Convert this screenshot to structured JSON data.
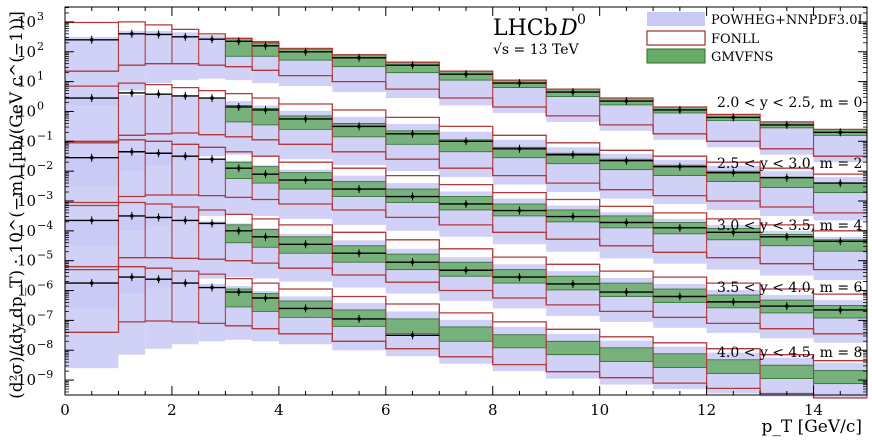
{
  "chart_data": {
    "type": "line",
    "title": "LHCb",
    "title_particle": "D",
    "title_particle_sup": "0",
    "subtitle": "√s = 13 TeV",
    "xlabel": "p_T [GeV/c]",
    "ylabel": "(d²σ)/(dy dp_T) · 10^(−m) [µb/(GeV c^(−1))]",
    "xlim": [
      0,
      15
    ],
    "ylim_log10": [
      -9.5,
      3.5
    ],
    "y_scale": "log",
    "xticks": [
      "0",
      "2",
      "4",
      "6",
      "8",
      "10",
      "12",
      "14"
    ],
    "yticks": [
      "10^3",
      "10^2",
      "10^1",
      "10^0",
      "10^-1",
      "10^-2",
      "10^-3",
      "10^-4",
      "10^-5",
      "10^-6",
      "10^-7",
      "10^-8",
      "10^-9"
    ],
    "legend_position": "top-right",
    "legend": [
      {
        "label": "POWHEG+NNPDF3.0L",
        "color": "#c9c9f6"
      },
      {
        "label": "FONLL",
        "color": "#b03a3a"
      },
      {
        "label": "GMVFNS",
        "color": "#67ad67"
      }
    ],
    "bins": [
      0,
      1,
      1.5,
      2,
      2.5,
      3,
      3.5,
      4,
      5,
      6,
      7,
      8,
      9,
      10,
      11,
      12,
      13,
      14,
      15
    ],
    "series": [
      {
        "name": "2.0 < y < 2.5, m = 0",
        "data_log10": [
          2.4,
          2.6,
          2.58,
          2.5,
          2.42,
          2.35,
          2.2,
          2.0,
          1.8,
          1.55,
          1.25,
          0.95,
          0.65,
          0.35,
          0.05,
          -0.2,
          -0.45,
          -0.7
        ],
        "fonll_high_log10": [
          2.98,
          3.0,
          2.9,
          2.75,
          2.6,
          2.45,
          2.3,
          2.1,
          1.9,
          1.65,
          1.35,
          1.05,
          0.75,
          0.45,
          0.15,
          -0.1,
          -0.35,
          -0.6
        ],
        "fonll_low_log10": [
          1.35,
          1.55,
          1.6,
          1.6,
          1.55,
          1.5,
          1.38,
          1.2,
          1.0,
          0.75,
          0.45,
          0.15,
          -0.15,
          -0.45,
          -0.75,
          -1.0,
          -1.25,
          -1.5
        ],
        "powheg_high_log10": [
          2.5,
          2.7,
          2.7,
          2.65,
          2.55,
          2.45,
          2.3,
          2.1,
          1.9,
          1.65,
          1.35,
          1.05,
          0.75,
          0.45,
          0.15,
          -0.1,
          -0.35,
          -0.6
        ],
        "powheg_low_log10": [
          0.2,
          0.7,
          0.95,
          1.05,
          1.1,
          1.05,
          0.95,
          0.85,
          0.65,
          0.45,
          0.2,
          -0.05,
          -0.35,
          -0.65,
          -0.95,
          -1.2,
          -1.45,
          -1.7
        ],
        "gmvfns_high_log10": [
          null,
          null,
          null,
          null,
          null,
          2.45,
          2.35,
          2.12,
          1.9,
          1.65,
          1.35,
          1.05,
          0.75,
          0.45,
          0.15,
          -0.1,
          -0.35,
          -0.6
        ],
        "gmvfns_low_log10": [
          null,
          null,
          null,
          null,
          null,
          1.85,
          1.85,
          1.72,
          1.5,
          1.3,
          1.05,
          0.8,
          0.5,
          0.22,
          -0.05,
          -0.3,
          -0.55,
          -0.8
        ]
      },
      {
        "name": "2.5 < y < 3.0, m = 2",
        "data_log10": [
          0.45,
          0.62,
          0.58,
          0.52,
          0.45,
          0.15,
          0.05,
          -0.25,
          -0.5,
          -0.75,
          -1.0,
          -1.25,
          -1.45,
          -1.65,
          -1.85,
          -2.05,
          -2.22,
          -2.4
        ],
        "fonll_high_log10": [
          0.85,
          0.95,
          0.9,
          0.8,
          0.7,
          0.6,
          0.45,
          0.25,
          0.05,
          -0.2,
          -0.5,
          -0.8,
          -1.05,
          -1.3,
          -1.5,
          -1.7,
          -1.9,
          -2.1
        ],
        "fonll_low_log10": [
          -1.0,
          -0.8,
          -0.75,
          -0.72,
          -0.78,
          -0.85,
          -0.95,
          -1.1,
          -1.35,
          -1.6,
          -1.9,
          -2.15,
          -2.4,
          -2.62,
          -2.82,
          -3.0,
          -3.2,
          -3.4
        ],
        "powheg_high_log10": [
          0.4,
          0.55,
          0.55,
          0.5,
          0.42,
          0.35,
          0.2,
          0.02,
          -0.18,
          -0.42,
          -0.68,
          -0.95,
          -1.2,
          -1.42,
          -1.62,
          -1.82,
          -2.0,
          -2.2
        ],
        "powheg_low_log10": [
          -2.5,
          -2.0,
          -1.8,
          -1.6,
          -1.5,
          -1.45,
          -1.5,
          -1.6,
          -1.8,
          -2.0,
          -2.2,
          -2.45,
          -2.7,
          -2.92,
          -3.1,
          -3.3,
          -3.5,
          -3.65
        ],
        "gmvfns_high_log10": [
          null,
          null,
          null,
          null,
          null,
          0.2,
          0.1,
          -0.15,
          -0.4,
          -0.65,
          -0.95,
          -1.2,
          -1.4,
          -1.6,
          -1.8,
          -2.0,
          -2.2,
          -2.4
        ],
        "gmvfns_low_log10": [
          null,
          null,
          null,
          null,
          null,
          -0.35,
          -0.45,
          -0.6,
          -0.85,
          -1.1,
          -1.35,
          -1.55,
          -1.75,
          -1.95,
          -2.15,
          -2.35,
          -2.55,
          -2.72
        ]
      },
      {
        "name": "3.0 < y < 3.5, m = 4",
        "data_log10": [
          -1.55,
          -1.35,
          -1.4,
          -1.5,
          -1.6,
          -1.9,
          -2.1,
          -2.3,
          -2.6,
          -2.85,
          -3.1,
          -3.32,
          -3.52,
          -3.72,
          -3.9,
          -4.05,
          -4.2,
          -4.35
        ],
        "fonll_high_log10": [
          -1.05,
          -0.95,
          -1.0,
          -1.1,
          -1.2,
          -1.35,
          -1.5,
          -1.7,
          -1.9,
          -2.15,
          -2.45,
          -2.72,
          -2.95,
          -3.18,
          -3.4,
          -3.6,
          -3.8,
          -4.0
        ],
        "fonll_low_log10": [
          -3.05,
          -2.85,
          -2.8,
          -2.8,
          -2.82,
          -2.88,
          -2.95,
          -3.1,
          -3.3,
          -3.55,
          -3.8,
          -4.05,
          -4.28,
          -4.5,
          -4.72,
          -4.9,
          -5.1,
          -5.3
        ],
        "powheg_high_log10": [
          -1.6,
          -1.45,
          -1.45,
          -1.5,
          -1.58,
          -1.65,
          -1.8,
          -1.95,
          -2.15,
          -2.4,
          -2.68,
          -2.92,
          -3.15,
          -3.38,
          -3.6,
          -3.8,
          -4.0,
          -4.2
        ],
        "powheg_low_log10": [
          -4.5,
          -4.0,
          -3.8,
          -3.6,
          -3.5,
          -3.45,
          -3.5,
          -3.6,
          -3.8,
          -4.0,
          -4.2,
          -4.45,
          -4.7,
          -4.92,
          -5.1,
          -5.3,
          -5.5,
          -5.65
        ],
        "gmvfns_high_log10": [
          null,
          null,
          null,
          null,
          null,
          -1.7,
          -1.85,
          -2.05,
          -2.35,
          -2.6,
          -2.85,
          -3.1,
          -3.3,
          -3.5,
          -3.72,
          -3.92,
          -4.12,
          -4.3
        ],
        "gmvfns_low_log10": [
          null,
          null,
          null,
          null,
          null,
          -2.25,
          -2.4,
          -2.6,
          -2.85,
          -3.05,
          -3.3,
          -3.5,
          -3.7,
          -3.9,
          -4.1,
          -4.3,
          -4.5,
          -4.68
        ]
      },
      {
        "name": "3.5 < y < 4.0, m = 6",
        "data_log10": [
          -3.65,
          -3.5,
          -3.55,
          -3.65,
          -3.75,
          -4.0,
          -4.2,
          -4.45,
          -4.75,
          -5.05,
          -5.32,
          -5.55,
          -5.78,
          -6.05,
          -6.2,
          -6.38,
          -6.52,
          -6.65
        ],
        "fonll_high_log10": [
          -3.15,
          -3.05,
          -3.1,
          -3.2,
          -3.3,
          -3.45,
          -3.6,
          -3.8,
          -4.05,
          -4.3,
          -4.6,
          -4.88,
          -5.12,
          -5.35,
          -5.55,
          -5.75,
          -5.95,
          -6.12
        ],
        "fonll_low_log10": [
          -5.2,
          -4.9,
          -4.9,
          -4.92,
          -4.95,
          -5.0,
          -5.08,
          -5.25,
          -5.48,
          -5.72,
          -6.0,
          -6.25,
          -6.48,
          -6.7,
          -6.9,
          -7.1,
          -7.28,
          -7.45
        ],
        "powheg_high_log10": [
          -3.7,
          -3.55,
          -3.55,
          -3.6,
          -3.68,
          -3.75,
          -3.92,
          -4.1,
          -4.32,
          -4.6,
          -4.88,
          -5.12,
          -5.35,
          -5.58,
          -5.78,
          -5.98,
          -6.15,
          -6.32
        ],
        "powheg_low_log10": [
          -6.6,
          -6.1,
          -5.9,
          -5.7,
          -5.6,
          -5.55,
          -5.6,
          -5.7,
          -5.9,
          -6.1,
          -6.35,
          -6.6,
          -6.85,
          -7.05,
          -7.25,
          -7.42,
          -7.6,
          -7.75
        ],
        "gmvfns_high_log10": [
          null,
          null,
          null,
          null,
          null,
          -3.8,
          -3.95,
          -4.2,
          -4.5,
          -4.78,
          -5.05,
          -5.3,
          -5.52,
          -5.75,
          -5.95,
          -6.15,
          -6.32,
          -6.5
        ],
        "gmvfns_low_log10": [
          null,
          null,
          null,
          null,
          null,
          -4.4,
          -4.55,
          -4.75,
          -5.05,
          -5.3,
          -5.52,
          -5.75,
          -5.98,
          -6.2,
          -6.4,
          -6.58,
          -6.75,
          -6.92
        ]
      },
      {
        "name": "4.0 < y < 4.5, m = 8",
        "data_log10": [
          -5.75,
          -5.55,
          -5.62,
          -5.75,
          -5.9,
          -6.05,
          -6.25,
          -6.6,
          -6.95,
          -7.5,
          null,
          null,
          null,
          null,
          null,
          null,
          null,
          null
        ],
        "fonll_high_log10": [
          -5.3,
          -5.2,
          -5.25,
          -5.35,
          -5.45,
          -5.6,
          -5.75,
          -5.95,
          -6.2,
          -6.45,
          -6.75,
          -7.05,
          -7.3,
          -7.55,
          -7.75,
          -7.95,
          -8.15,
          -8.35
        ],
        "fonll_low_log10": [
          -7.4,
          -7.05,
          -7.02,
          -7.05,
          -7.1,
          -7.18,
          -7.28,
          -7.45,
          -7.7,
          -7.95,
          -8.22,
          -8.48,
          -8.72,
          -8.92,
          -9.1,
          -9.28,
          -9.45,
          -9.6
        ],
        "powheg_high_log10": [
          -5.8,
          -5.65,
          -5.65,
          -5.7,
          -5.78,
          -5.85,
          -6.02,
          -6.2,
          -6.42,
          -6.7,
          -6.98,
          -7.22,
          -7.45,
          -7.68,
          -7.88,
          -8.08,
          -8.25,
          -8.42
        ],
        "powheg_low_log10": [
          -8.6,
          -8.15,
          -7.95,
          -7.8,
          -7.7,
          -7.65,
          -7.7,
          -7.8,
          -8.0,
          -8.2,
          -8.45,
          -8.7,
          -8.95,
          -9.15,
          -9.3,
          -9.45,
          -9.55,
          -9.6
        ],
        "gmvfns_high_log10": [
          null,
          null,
          null,
          null,
          null,
          -5.95,
          -6.1,
          -6.35,
          -6.65,
          -6.95,
          -7.22,
          -7.48,
          -7.7,
          -7.92,
          -8.12,
          -8.32,
          -8.5,
          -8.68
        ],
        "gmvfns_low_log10": [
          null,
          null,
          null,
          null,
          null,
          -6.55,
          -6.7,
          -6.9,
          -7.2,
          -7.45,
          -7.7,
          -7.92,
          -8.15,
          -8.38,
          -8.58,
          -8.78,
          -8.95,
          -9.12
        ]
      }
    ],
    "annotations": [
      "2.0 < y < 2.5, m = 0",
      "2.5 < y < 3.0, m = 2",
      "3.0 < y < 3.5, m = 4",
      "3.5 < y < 4.0, m = 6",
      "4.0 < y < 4.5, m = 8"
    ]
  }
}
